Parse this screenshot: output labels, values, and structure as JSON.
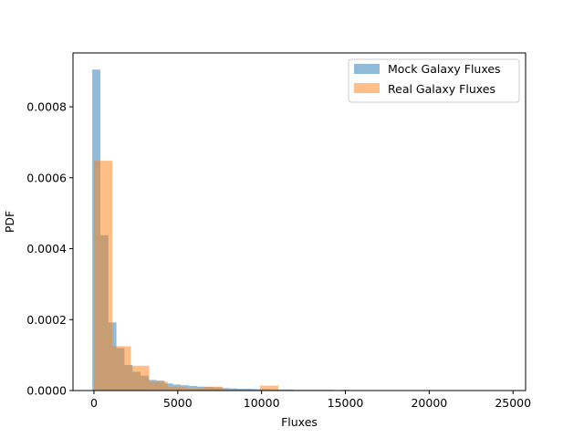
{
  "chart_data": {
    "type": "histogram",
    "xlabel": "Fluxes",
    "ylabel": "PDF",
    "xlim": [
      -1250,
      25750
    ],
    "ylim": [
      0,
      0.000952
    ],
    "x_ticks": [
      0,
      5000,
      10000,
      15000,
      20000,
      25000
    ],
    "x_tick_labels": [
      "0",
      "5000",
      "10000",
      "15000",
      "20000",
      "25000"
    ],
    "y_ticks": [
      0,
      0.0002,
      0.0004,
      0.0006,
      0.0008
    ],
    "y_tick_labels": [
      "0.0000",
      "0.0002",
      "0.0004",
      "0.0006",
      "0.0008"
    ],
    "legend_position": "upper right",
    "grid": false,
    "series": [
      {
        "name": "Mock Galaxy Fluxes",
        "color": "#1f77b4",
        "alpha": 0.5,
        "bins": [
          [
            -100,
            380,
            0.000905
          ],
          [
            380,
            860,
            0.000438
          ],
          [
            860,
            1340,
            0.000192
          ],
          [
            1340,
            1820,
            0.00012
          ],
          [
            1820,
            2300,
            7.2e-05
          ],
          [
            2300,
            2780,
            5.3e-05
          ],
          [
            2780,
            3260,
            4.2e-05
          ],
          [
            3260,
            3740,
            3e-05
          ],
          [
            3740,
            4220,
            2.8e-05
          ],
          [
            4220,
            4700,
            2e-05
          ],
          [
            4700,
            5180,
            1.7e-05
          ],
          [
            5180,
            5660,
            1.5e-05
          ],
          [
            5660,
            6140,
            1.3e-05
          ],
          [
            6140,
            6620,
            1.1e-05
          ],
          [
            6620,
            7100,
            1e-05
          ],
          [
            7100,
            7580,
            9e-06
          ],
          [
            7580,
            8060,
            7e-06
          ],
          [
            8060,
            8540,
            6e-06
          ],
          [
            8540,
            9020,
            5e-06
          ],
          [
            9020,
            9500,
            5e-06
          ],
          [
            9500,
            9980,
            4e-06
          ],
          [
            9980,
            10460,
            4e-06
          ],
          [
            10460,
            10940,
            3e-06
          ],
          [
            10940,
            11420,
            3e-06
          ],
          [
            11420,
            11900,
            3e-06
          ],
          [
            11900,
            12380,
            2e-06
          ],
          [
            12380,
            12860,
            2e-06
          ],
          [
            12860,
            13340,
            2e-06
          ],
          [
            13340,
            13820,
            2e-06
          ],
          [
            13820,
            14300,
            2e-06
          ],
          [
            14300,
            14780,
            1e-06
          ],
          [
            14780,
            15260,
            2e-06
          ],
          [
            15260,
            15740,
            1e-06
          ],
          [
            15740,
            16220,
            1e-06
          ],
          [
            16220,
            16700,
            1e-06
          ],
          [
            16700,
            17180,
            1e-06
          ],
          [
            17180,
            17660,
            7e-07
          ],
          [
            17660,
            18140,
            6e-07
          ],
          [
            18140,
            18620,
            5e-07
          ],
          [
            18620,
            19100,
            5e-07
          ],
          [
            19100,
            24500,
            3e-07
          ]
        ]
      },
      {
        "name": "Real Galaxy Fluxes",
        "color": "#ff7f0e",
        "alpha": 0.5,
        "bins": [
          [
            0,
            1100,
            0.000648
          ],
          [
            1100,
            2200,
            0.000125
          ],
          [
            2200,
            3300,
            7e-05
          ],
          [
            3300,
            4400,
            2.5e-05
          ],
          [
            4400,
            5500,
            1e-05
          ],
          [
            5500,
            6600,
            6e-06
          ],
          [
            6600,
            7700,
            1.1e-05
          ],
          [
            7700,
            8800,
            3e-06
          ],
          [
            8800,
            9900,
            2e-06
          ],
          [
            9900,
            11000,
            1.4e-05
          ],
          [
            11000,
            12100,
            1e-06
          ]
        ]
      }
    ]
  }
}
